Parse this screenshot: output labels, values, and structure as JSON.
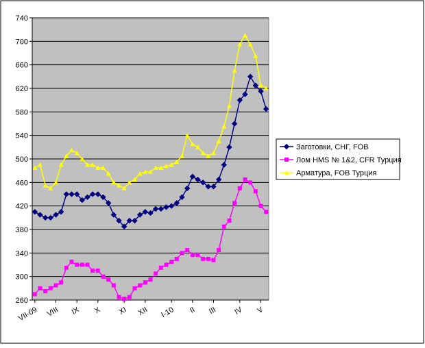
{
  "chart_data": {
    "type": "line",
    "categories": [
      "VII-09",
      null,
      null,
      null,
      "VIII",
      null,
      null,
      null,
      "IX",
      null,
      null,
      null,
      "X",
      null,
      null,
      null,
      null,
      "XI",
      null,
      null,
      null,
      "XII",
      null,
      null,
      null,
      null,
      "I-10",
      null,
      null,
      null,
      "II",
      null,
      null,
      null,
      "III",
      null,
      null,
      null,
      null,
      "IV",
      null,
      null,
      null,
      "V",
      null
    ],
    "series": [
      {
        "name": "Заготовки, СНГ, FOB",
        "color": "#000080",
        "marker": "diamond",
        "values": [
          410,
          405,
          400,
          400,
          405,
          410,
          440,
          440,
          440,
          430,
          435,
          440,
          440,
          435,
          425,
          405,
          395,
          385,
          395,
          395,
          405,
          410,
          408,
          415,
          415,
          418,
          420,
          425,
          435,
          450,
          470,
          465,
          460,
          453,
          453,
          465,
          490,
          520,
          560,
          600,
          610,
          640,
          625,
          615,
          585
        ]
      },
      {
        "name": "Лом HMS № 1&2, CFR Турция",
        "color": "#ff00ff",
        "marker": "square",
        "values": [
          270,
          280,
          275,
          280,
          285,
          290,
          315,
          325,
          320,
          320,
          320,
          310,
          310,
          300,
          295,
          285,
          265,
          262,
          265,
          280,
          285,
          290,
          295,
          305,
          315,
          320,
          325,
          330,
          340,
          345,
          337,
          337,
          330,
          330,
          328,
          345,
          385,
          395,
          425,
          450,
          465,
          460,
          445,
          420,
          410
        ]
      },
      {
        "name": "Арматура, FOB Турция",
        "color": "#ffff00",
        "marker": "triangle",
        "values": [
          485,
          490,
          455,
          450,
          460,
          490,
          505,
          515,
          510,
          500,
          490,
          490,
          485,
          485,
          475,
          460,
          455,
          450,
          460,
          465,
          475,
          478,
          478,
          485,
          485,
          488,
          490,
          495,
          505,
          540,
          525,
          520,
          510,
          505,
          510,
          530,
          555,
          590,
          650,
          695,
          710,
          695,
          675,
          625,
          620
        ]
      }
    ],
    "ylim": [
      260,
      740
    ],
    "yticks": [
      260,
      300,
      340,
      380,
      420,
      460,
      500,
      540,
      580,
      620,
      660,
      700,
      740
    ],
    "grid": true,
    "legend": "right",
    "plot_background": "#c0c0c0"
  }
}
